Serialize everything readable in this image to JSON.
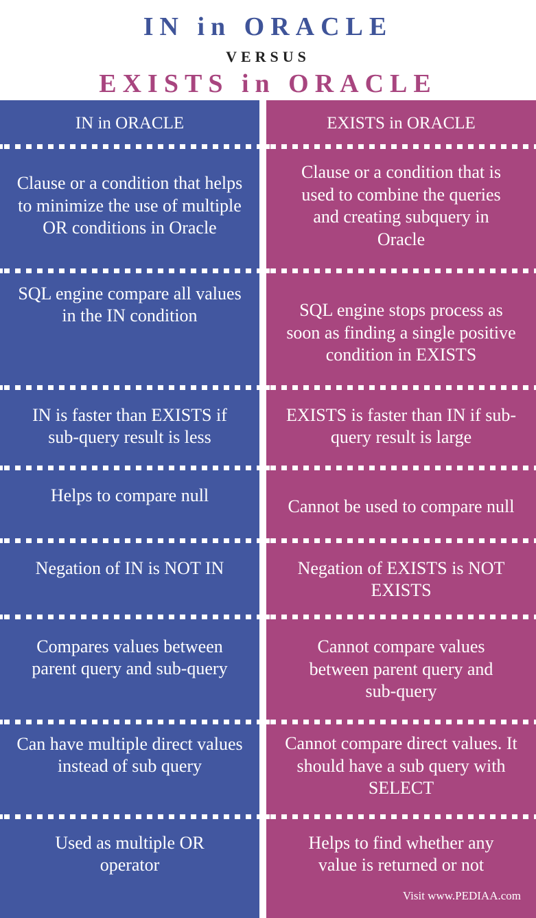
{
  "title": {
    "left": "IN in ORACLE",
    "versus": "VERSUS",
    "right": "EXISTS in ORACLE"
  },
  "columns": {
    "left_header": "IN in ORACLE",
    "right_header": "EXISTS in ORACLE"
  },
  "rows": [
    {
      "left": "Clause or a condition that helps to minimize the use of multiple OR conditions in Oracle",
      "right": "Clause or a condition that is used to combine the queries and creating subquery in Oracle"
    },
    {
      "left": "SQL engine compare all values in the IN condition",
      "right": "SQL engine stops process as soon as finding a single positive condition in EXISTS"
    },
    {
      "left": "IN is faster than EXISTS if sub-query result is less",
      "right": "EXISTS is faster than IN if sub-query result is large"
    },
    {
      "left": "Helps to compare null",
      "right": "Cannot be used to compare null"
    },
    {
      "left": "Negation of IN is NOT IN",
      "right": "Negation of EXISTS is NOT EXISTS"
    },
    {
      "left": "Compares values between parent query and sub-query",
      "right": "Cannot compare values between parent query and sub-query"
    },
    {
      "left": "Can have multiple direct values instead of sub query",
      "right": "Cannot compare direct values. It should have a sub query with SELECT"
    },
    {
      "left": "Used as multiple OR operator",
      "right": "Helps to find whether any value is returned or not"
    }
  ],
  "footer": "Visit www.PEDIAA.com",
  "colors": {
    "left_accent": "#4257a0",
    "right_accent": "#a8467f",
    "title_left": "#3f5499",
    "title_right": "#a8457f"
  }
}
